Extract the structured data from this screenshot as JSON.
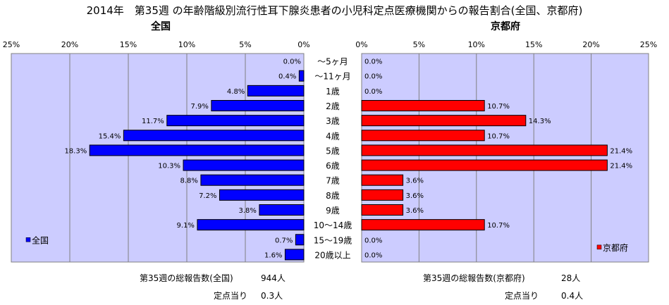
{
  "title": "2014年　第35週 の年齢階級別流行性耳下腺炎患者の小児科定点医療機関からの報告割合(全国、京都府)",
  "chart_data": {
    "type": "bar",
    "categories": [
      "～5ヶ月",
      "～11ヶ月",
      "1歳",
      "2歳",
      "3歳",
      "4歳",
      "5歳",
      "6歳",
      "7歳",
      "8歳",
      "9歳",
      "10～14歳",
      "15～19歳",
      "20歳以上"
    ],
    "xlim": [
      0,
      25
    ],
    "tick_labels": [
      "0%",
      "5%",
      "10%",
      "15%",
      "20%",
      "25%"
    ],
    "grid": true,
    "series": [
      {
        "name": "全国",
        "panel_title": "全国",
        "color": "#0000ff",
        "plot_bg": "#ccccff",
        "legend_position": "bottom-left",
        "values": [
          0.0,
          0.4,
          4.8,
          7.9,
          11.7,
          15.4,
          18.3,
          10.3,
          8.8,
          7.2,
          3.8,
          9.1,
          0.7,
          1.6
        ],
        "labels": [
          "0.0%",
          "0.4%",
          "4.8%",
          "7.9%",
          "11.7%",
          "15.4%",
          "18.3%",
          "10.3%",
          "8.8%",
          "7.2%",
          "3.8%",
          "9.1%",
          "0.7%",
          "1.6%"
        ]
      },
      {
        "name": "京都府",
        "panel_title": "京都府",
        "color": "#ff0000",
        "plot_bg": "#ccccff",
        "legend_position": "bottom-right",
        "values": [
          0.0,
          0.0,
          0.0,
          10.7,
          14.3,
          10.7,
          21.4,
          21.4,
          3.6,
          3.6,
          3.6,
          10.7,
          0.0,
          0.0
        ],
        "labels": [
          "0.0%",
          "0.0%",
          "0.0%",
          "10.7%",
          "14.3%",
          "10.7%",
          "21.4%",
          "21.4%",
          "3.6%",
          "3.6%",
          "3.6%",
          "10.7%",
          "0.0%",
          "0.0%"
        ]
      }
    ]
  },
  "footer": {
    "national_total_label": "第35週の総報告数(全国)",
    "national_total_value": "944人",
    "national_per_label": "定点当り",
    "national_per_value": "0.3人",
    "kyoto_total_label": "第35週の総報告数(京都府)",
    "kyoto_total_value": "28人",
    "kyoto_per_label": "定点当り",
    "kyoto_per_value": "0.4人"
  }
}
